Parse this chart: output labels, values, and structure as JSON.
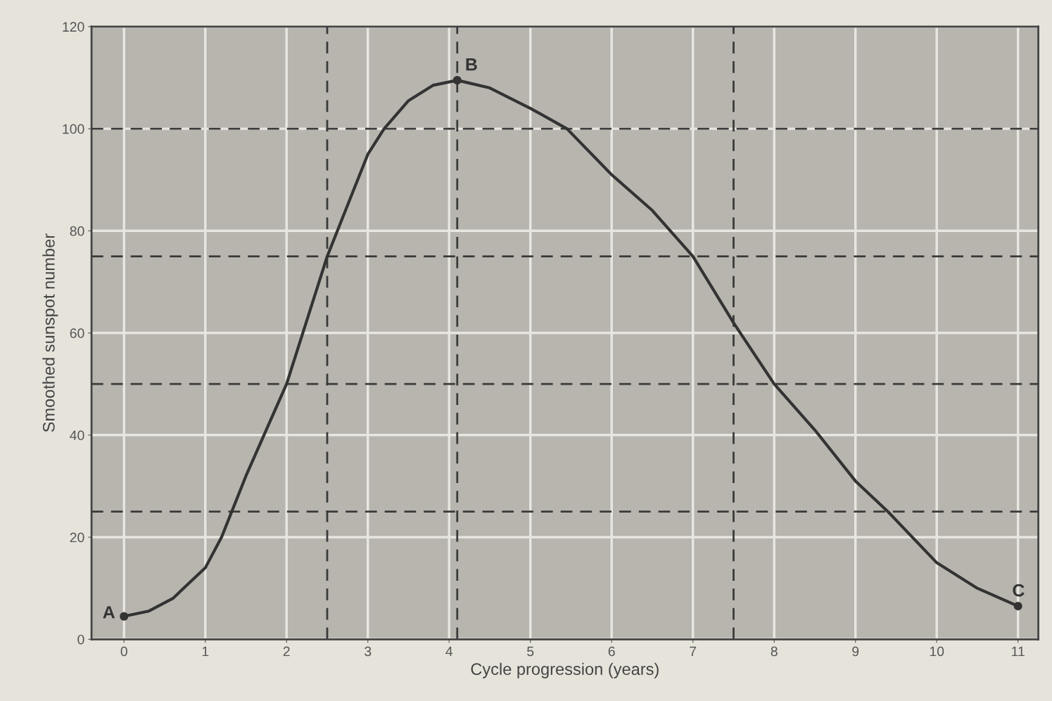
{
  "chart_data": {
    "type": "line",
    "xlabel": "Cycle progression (years)",
    "ylabel": "Smoothed sunspot number",
    "xlim": [
      -0.4,
      11.25
    ],
    "ylim": [
      0,
      120
    ],
    "xticks": [
      0,
      1,
      2,
      3,
      4,
      5,
      6,
      7,
      8,
      9,
      10,
      11
    ],
    "yticks": [
      0,
      20,
      40,
      60,
      80,
      100,
      120
    ],
    "grid": true,
    "marker": "none",
    "line_style": "solid",
    "series": [
      {
        "color": "#333333",
        "x": [
          0,
          0.3,
          0.6,
          1,
          1.2,
          1.5,
          2,
          2.5,
          3,
          3.2,
          3.5,
          3.8,
          4.1,
          4.5,
          5,
          5.45,
          6,
          6.5,
          7,
          7.5,
          8,
          8.5,
          9,
          9.4,
          10,
          10.5,
          11
        ],
        "values": [
          4.5,
          5.5,
          8,
          14,
          20,
          32,
          50,
          75,
          95,
          100,
          105.5,
          108.5,
          109.5,
          108,
          104,
          100,
          91,
          84,
          75,
          62,
          50,
          41,
          31,
          25,
          15,
          10,
          6.5
        ]
      },
      {
        "type": "scatter",
        "color": "#333333",
        "marker": "circle",
        "x": [
          0,
          4.1,
          11
        ],
        "values": [
          4.5,
          109.5,
          6.5
        ]
      }
    ],
    "ref_lines": [
      {
        "axis": "y",
        "value": 25,
        "color": "#3a3a3a",
        "line_style": "dashed"
      },
      {
        "axis": "y",
        "value": 50,
        "color": "#3a3a3a",
        "line_style": "dashed"
      },
      {
        "axis": "y",
        "value": 75,
        "color": "#3a3a3a",
        "line_style": "dashed"
      },
      {
        "axis": "y",
        "value": 100,
        "color": "#3a3a3a",
        "line_style": "dashed"
      },
      {
        "axis": "x",
        "value": 2.5,
        "color": "#3a3a3a",
        "line_style": "dashed"
      },
      {
        "axis": "x",
        "value": 4.1,
        "color": "#3a3a3a",
        "line_style": "dashed"
      },
      {
        "axis": "x",
        "value": 7.5,
        "color": "#3a3a3a",
        "line_style": "dashed"
      }
    ],
    "annotations": [
      {
        "text": "A",
        "x": 0,
        "y": 4.5
      },
      {
        "text": "B",
        "x": 4.1,
        "y": 109.5
      },
      {
        "text": "C",
        "x": 11,
        "y": 6.5
      }
    ]
  }
}
